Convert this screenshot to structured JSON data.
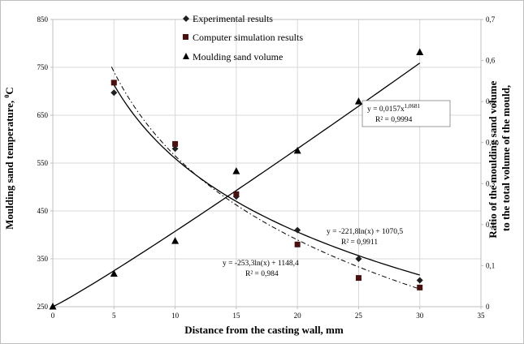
{
  "chart_data": {
    "type": "scatter",
    "xlabel": "Distance from the casting wall, mm",
    "ylabel_parts": [
      "Moulding sand temperature, ",
      "0",
      "C"
    ],
    "y2label_lines": [
      "Ratio of the moulding sand volume",
      "to the total volume of the mould,"
    ],
    "xlim": [
      0,
      35
    ],
    "ylim": [
      250,
      850
    ],
    "y2lim": [
      0,
      0.7
    ],
    "x_ticks": [
      "0",
      "5",
      "10",
      "15",
      "20",
      "25",
      "30",
      "35"
    ],
    "y_ticks": [
      "250",
      "350",
      "450",
      "550",
      "650",
      "750",
      "850"
    ],
    "y2_ticks": [
      "0",
      "0,1",
      "0,2",
      "0,3",
      "0,4",
      "0,5",
      "0,6",
      "0,7"
    ],
    "grid": true,
    "legend_position": "top-center",
    "series": [
      {
        "name": "Experimental results",
        "marker": "diamond",
        "axis": "left",
        "color": "#1f1f1f",
        "x": [
          5,
          10,
          15,
          20,
          25,
          30
        ],
        "y": [
          697,
          580,
          480,
          410,
          350,
          305
        ]
      },
      {
        "name": "Computer simulation results",
        "marker": "square",
        "axis": "left",
        "color": "#4a1010",
        "x": [
          5,
          10,
          15,
          20,
          25,
          30
        ],
        "y": [
          718,
          590,
          485,
          380,
          310,
          290
        ]
      },
      {
        "name": "Moulding sand volume",
        "marker": "triangle",
        "axis": "right",
        "color": "#000000",
        "x": [
          0,
          5,
          10,
          15,
          20,
          25,
          30
        ],
        "y": [
          0,
          0.08,
          0.16,
          0.33,
          0.38,
          0.5,
          0.62
        ]
      }
    ],
    "trendlines": [
      {
        "name": "experimental-trend",
        "kind": "log",
        "a": -221.8,
        "b": 1070.5,
        "axis": "left",
        "style": "solid"
      },
      {
        "name": "simulation-trend",
        "kind": "log",
        "a": -253.3,
        "b": 1148.4,
        "axis": "left",
        "style": "dashdot"
      },
      {
        "name": "volume-trend",
        "kind": "power",
        "a": 0.0157,
        "b": 1.0681,
        "axis": "right",
        "style": "solid"
      }
    ],
    "annotations": {
      "power_eq": {
        "text": "y = 0,0157x",
        "sup": "1,0681",
        "r2": "R² = 0,9994"
      },
      "exp_eq": {
        "text": "y = -221,8ln(x) + 1070,5",
        "r2": "R² = 0,9911"
      },
      "sim_eq": {
        "text": "y = -253,3ln(x) + 1148,4",
        "r2": "R² = 0,984"
      }
    }
  }
}
